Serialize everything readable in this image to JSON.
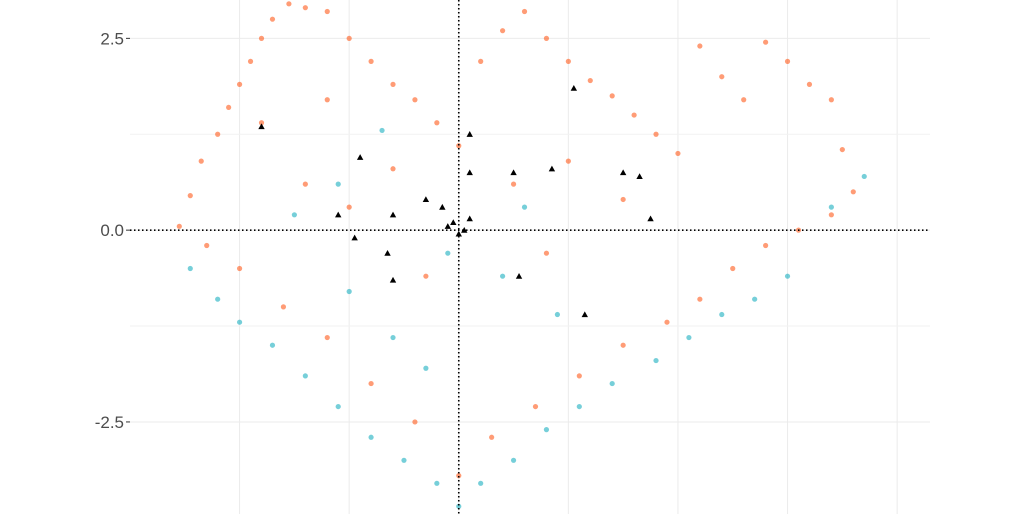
{
  "chart_data": {
    "type": "scatter",
    "title": "",
    "xlabel": "",
    "ylabel": "",
    "xlim": [
      -3.0,
      4.3
    ],
    "ylim": [
      -3.7,
      3.0
    ],
    "y_ticks": [
      {
        "value": 2.5,
        "label": "2.5"
      },
      {
        "value": 0.0,
        "label": "0.0"
      },
      {
        "value": -2.5,
        "label": "-2.5"
      }
    ],
    "x_gridlines": [
      -2.0,
      -1.0,
      0.0,
      1.0,
      2.0,
      3.0,
      4.0
    ],
    "y_minor_gridlines": [
      1.25,
      -1.25
    ],
    "reference_lines": {
      "x": 0.0,
      "y": 0.0,
      "style": "dotted"
    },
    "grid": true,
    "legend": "none",
    "colors": {
      "orange_series": "#FF5A1A",
      "teal_series": "#1AAFBF",
      "triangle_markers": "#000000"
    },
    "series": [
      {
        "marker": "circle",
        "color": "#FF5A1A",
        "points": [
          [
            -2.55,
            0.05
          ],
          [
            -2.45,
            0.45
          ],
          [
            -2.35,
            0.9
          ],
          [
            -2.2,
            1.25
          ],
          [
            -2.1,
            1.6
          ],
          [
            -2.0,
            1.9
          ],
          [
            -1.9,
            2.2
          ],
          [
            -1.8,
            2.5
          ],
          [
            -1.7,
            2.75
          ],
          [
            -1.55,
            2.95
          ],
          [
            -1.4,
            2.9
          ],
          [
            -1.2,
            2.85
          ],
          [
            -1.0,
            2.5
          ],
          [
            -0.8,
            2.2
          ],
          [
            -0.6,
            1.9
          ],
          [
            -0.4,
            1.7
          ],
          [
            -0.2,
            1.4
          ],
          [
            0.0,
            1.1
          ],
          [
            0.2,
            2.2
          ],
          [
            0.4,
            2.6
          ],
          [
            0.6,
            2.85
          ],
          [
            0.8,
            2.5
          ],
          [
            1.0,
            2.2
          ],
          [
            1.2,
            1.95
          ],
          [
            1.4,
            1.75
          ],
          [
            1.6,
            1.5
          ],
          [
            1.8,
            1.25
          ],
          [
            2.0,
            1.0
          ],
          [
            2.2,
            2.4
          ],
          [
            2.4,
            2.0
          ],
          [
            2.6,
            1.7
          ],
          [
            2.8,
            2.45
          ],
          [
            3.0,
            2.2
          ],
          [
            3.2,
            1.9
          ],
          [
            3.4,
            1.7
          ],
          [
            3.5,
            1.05
          ],
          [
            3.6,
            0.5
          ],
          [
            3.4,
            0.2
          ],
          [
            3.1,
            0.0
          ],
          [
            2.8,
            -0.2
          ],
          [
            2.5,
            -0.5
          ],
          [
            2.2,
            -0.9
          ],
          [
            1.9,
            -1.2
          ],
          [
            1.5,
            -1.5
          ],
          [
            1.1,
            -1.9
          ],
          [
            0.7,
            -2.3
          ],
          [
            0.3,
            -2.7
          ],
          [
            0.0,
            -3.2
          ],
          [
            -0.4,
            -2.5
          ],
          [
            -0.8,
            -2.0
          ],
          [
            -1.2,
            -1.4
          ],
          [
            -1.6,
            -1.0
          ],
          [
            -2.0,
            -0.5
          ],
          [
            -2.3,
            -0.2
          ],
          [
            -1.0,
            0.3
          ],
          [
            -0.6,
            0.8
          ],
          [
            0.5,
            0.6
          ],
          [
            1.0,
            0.9
          ],
          [
            1.5,
            0.4
          ],
          [
            0.8,
            -0.3
          ],
          [
            -0.3,
            -0.6
          ],
          [
            -1.4,
            0.6
          ],
          [
            -1.8,
            1.4
          ],
          [
            -1.2,
            1.7
          ]
        ]
      },
      {
        "marker": "circle",
        "color": "#1AAFBF",
        "points": [
          [
            -2.45,
            -0.5
          ],
          [
            -2.2,
            -0.9
          ],
          [
            -2.0,
            -1.2
          ],
          [
            -1.7,
            -1.5
          ],
          [
            -1.4,
            -1.9
          ],
          [
            -1.1,
            -2.3
          ],
          [
            -0.8,
            -2.7
          ],
          [
            -0.5,
            -3.0
          ],
          [
            -0.2,
            -3.3
          ],
          [
            0.0,
            -3.6
          ],
          [
            0.2,
            -3.3
          ],
          [
            0.5,
            -3.0
          ],
          [
            0.8,
            -2.6
          ],
          [
            1.1,
            -2.3
          ],
          [
            1.4,
            -2.0
          ],
          [
            1.8,
            -1.7
          ],
          [
            2.1,
            -1.4
          ],
          [
            2.4,
            -1.1
          ],
          [
            2.7,
            -0.9
          ],
          [
            3.0,
            -0.6
          ],
          [
            3.4,
            0.3
          ],
          [
            3.7,
            0.7
          ],
          [
            -0.3,
            -1.8
          ],
          [
            -0.6,
            -1.4
          ],
          [
            -1.0,
            -0.8
          ],
          [
            -1.5,
            0.2
          ],
          [
            -1.1,
            0.6
          ],
          [
            -0.7,
            1.3
          ],
          [
            0.4,
            -0.6
          ],
          [
            0.9,
            -1.1
          ],
          [
            -0.1,
            -0.3
          ],
          [
            0.6,
            0.3
          ]
        ]
      },
      {
        "marker": "triangle",
        "color": "#000000",
        "points": [
          [
            -1.8,
            1.35
          ],
          [
            0.1,
            1.25
          ],
          [
            0.5,
            0.75
          ],
          [
            0.1,
            0.75
          ],
          [
            -0.9,
            0.95
          ],
          [
            -0.6,
            0.2
          ],
          [
            -1.1,
            0.2
          ],
          [
            -0.95,
            -0.1
          ],
          [
            -0.15,
            0.3
          ],
          [
            -0.05,
            0.1
          ],
          [
            0.0,
            -0.05
          ],
          [
            0.05,
            0.0
          ],
          [
            1.5,
            0.75
          ],
          [
            1.65,
            0.7
          ],
          [
            1.75,
            0.15
          ],
          [
            1.15,
            -1.1
          ],
          [
            0.55,
            -0.6
          ],
          [
            -0.6,
            -0.65
          ],
          [
            -0.3,
            0.4
          ],
          [
            0.85,
            0.8
          ],
          [
            1.05,
            1.85
          ],
          [
            -0.1,
            0.05
          ],
          [
            0.1,
            0.15
          ],
          [
            -0.65,
            -0.3
          ]
        ]
      }
    ]
  }
}
